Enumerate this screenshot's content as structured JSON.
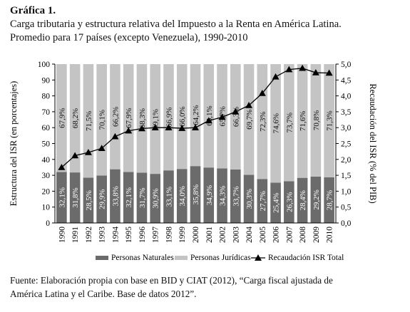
{
  "header": {
    "figure_label": "Gráfica 1.",
    "title_line1": "Carga tributaria y estructura relativa del Impuesto a la Renta en América Latina.",
    "title_line2": "Promedio para 17 países (excepto Venezuela), 1990-2010"
  },
  "source": {
    "line1": "Fuente: Elaboración propia con base en BID y CIAT (2012), “Carga fiscal ajustada de",
    "line2": "América Latina y el Caribe. Base de datos 2012”."
  },
  "chart_data": {
    "type": "bar",
    "stacked": true,
    "categories": [
      "1990",
      "1991",
      "1992",
      "1993",
      "1994",
      "1995",
      "1996",
      "1997",
      "1998",
      "1999",
      "2000",
      "2001",
      "2002",
      "2003",
      "2004",
      "2005",
      "2006",
      "2007",
      "2008",
      "2009",
      "2010"
    ],
    "series": [
      {
        "name": "Personas Naturales",
        "color": "#6b6b6b",
        "axis": "left",
        "values": [
          32.1,
          31.8,
          28.5,
          29.9,
          33.8,
          32.1,
          31.7,
          30.9,
          33.1,
          34.0,
          35.8,
          34.9,
          34.3,
          33.7,
          30.3,
          27.7,
          25.4,
          26.3,
          28.4,
          29.2,
          28.7
        ],
        "labels": [
          "32,1%",
          "31,8%",
          "28,5%",
          "29,9%",
          "33,8%",
          "32,1%",
          "31,7%",
          "30,9%",
          "33,1%",
          "34,0%",
          "35,8%",
          "34,9%",
          "34,3%",
          "33,7%",
          "30,3%",
          "27,7%",
          "25,4%",
          "26,3%",
          "28,4%",
          "29,2%",
          "28,7%"
        ]
      },
      {
        "name": "Personas Jurídicas",
        "color": "#c4c4c4",
        "axis": "left",
        "values": [
          67.9,
          68.2,
          71.5,
          70.1,
          66.2,
          67.9,
          68.3,
          69.1,
          66.9,
          66.0,
          64.2,
          65.1,
          65.7,
          66.3,
          69.7,
          72.3,
          74.6,
          73.7,
          71.6,
          70.8,
          71.3
        ],
        "labels": [
          "67,9%",
          "68,2%",
          "71,5%",
          "70,1%",
          "66,2%",
          "67,9%",
          "68,3%",
          "69,1%",
          "66,9%",
          "66,0%",
          "64,2%",
          "65,1%",
          "65,7%",
          "66,3%",
          "69,7%",
          "72,3%",
          "74,6%",
          "73,7%",
          "71,6%",
          "70,8%",
          "71,3%"
        ]
      },
      {
        "name": "Recaudación ISR Total",
        "type": "line",
        "color": "#000000",
        "marker": "triangle",
        "axis": "right",
        "values": [
          1.75,
          2.12,
          2.22,
          2.35,
          2.72,
          2.9,
          2.97,
          3.0,
          3.0,
          2.98,
          3.0,
          3.22,
          3.33,
          3.5,
          3.7,
          4.08,
          4.6,
          4.83,
          4.87,
          4.73,
          4.72
        ]
      }
    ],
    "ylabel": "Estructura del ISR (en porcentajes)",
    "ylim": [
      0,
      100
    ],
    "yticks": [
      "0",
      "10",
      "20",
      "30",
      "40",
      "50",
      "60",
      "70",
      "80",
      "90",
      "100"
    ],
    "y2label": "Recaudación del ISR (% del PIB)",
    "y2lim": [
      0,
      5
    ],
    "y2ticks": [
      "0,0",
      "0,5",
      "1,0",
      "1,5",
      "2,0",
      "2,5",
      "3,0",
      "3,5",
      "4,0",
      "4,5",
      "5,0"
    ],
    "legend_position": "bottom",
    "grid": false
  }
}
